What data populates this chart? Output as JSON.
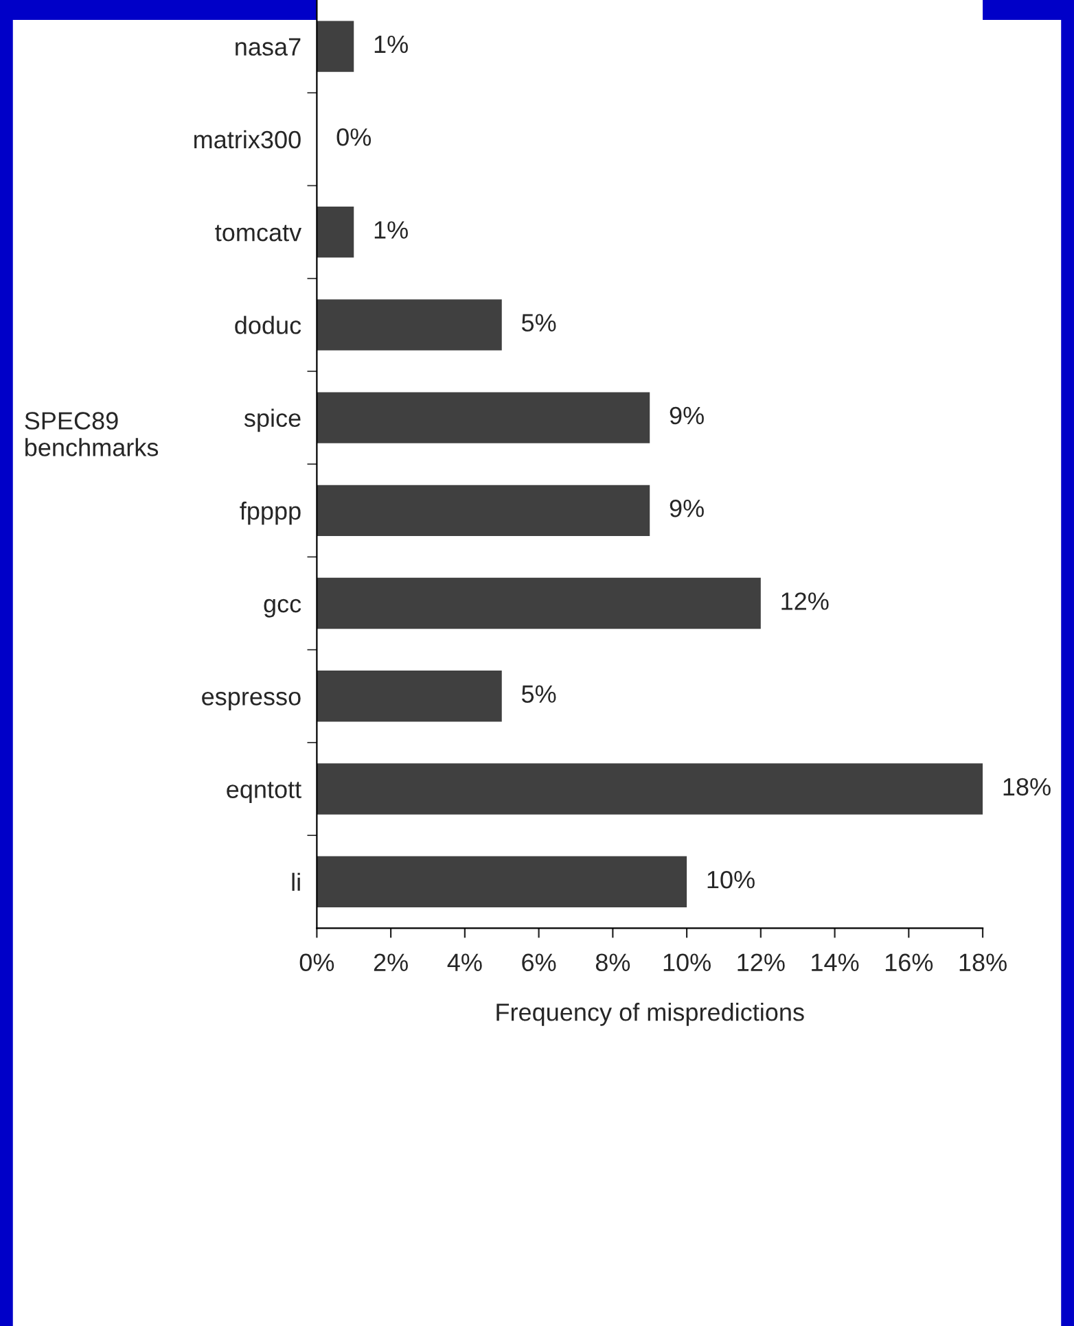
{
  "chart_data": {
    "type": "bar",
    "orientation": "horizontal",
    "categories": [
      "nasa7",
      "matrix300",
      "tomcatv",
      "doduc",
      "spice",
      "fpppp",
      "gcc",
      "espresso",
      "eqntott",
      "li"
    ],
    "values": [
      1,
      0,
      1,
      5,
      9,
      9,
      12,
      5,
      18,
      10
    ],
    "value_labels": [
      "1%",
      "0%",
      "1%",
      "5%",
      "9%",
      "9%",
      "12%",
      "5%",
      "18%",
      "10%"
    ],
    "color": "#404040",
    "xlabel": "Frequency of mispredictions",
    "ylabel": "SPEC89\nbenchmarks",
    "xlim": [
      0,
      18
    ],
    "xticks": [
      {
        "value": 0,
        "label": "0%"
      },
      {
        "value": 2,
        "label": "2%"
      },
      {
        "value": 4,
        "label": "4%"
      },
      {
        "value": 6,
        "label": "6%"
      },
      {
        "value": 8,
        "label": "8%"
      },
      {
        "value": 10,
        "label": "10%"
      },
      {
        "value": 12,
        "label": "12%"
      },
      {
        "value": 14,
        "label": "14%"
      },
      {
        "value": 16,
        "label": "16%"
      },
      {
        "value": 18,
        "label": "18%"
      }
    ],
    "grid": false
  }
}
